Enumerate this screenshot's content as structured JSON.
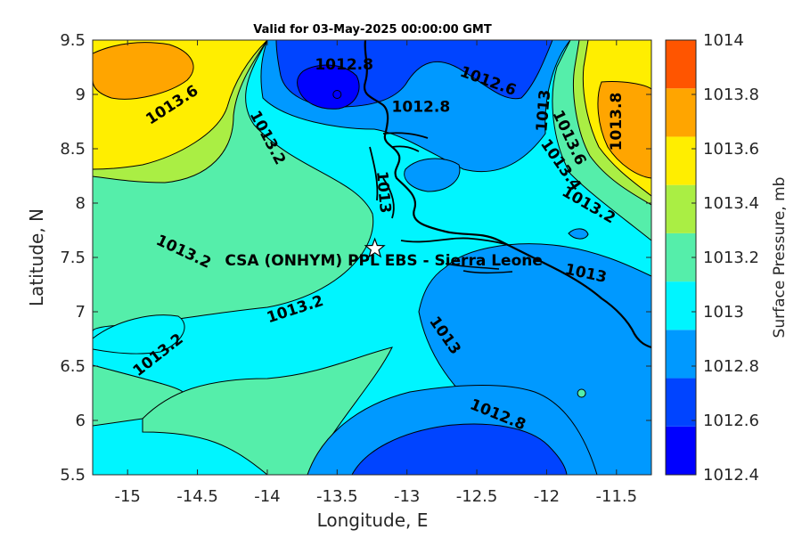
{
  "chart_data": {
    "type": "contour-map",
    "title": "Valid for 03-May-2025 00:00:00 GMT",
    "xlabel": "Longitude, E",
    "ylabel": "Latitude, N",
    "xlim": [
      -15.25,
      -11.25
    ],
    "ylim": [
      5.5,
      9.5
    ],
    "x_ticks": [
      "-15",
      "-14.5",
      "-14",
      "-13.5",
      "-13",
      "-12.5",
      "-12",
      "-11.5"
    ],
    "x_tick_values": [
      -15,
      -14.5,
      -14,
      -13.5,
      -13,
      -12.5,
      -12,
      -11.5
    ],
    "y_ticks": [
      "5.5",
      "6",
      "6.5",
      "7",
      "7.5",
      "8",
      "8.5",
      "9",
      "9.5"
    ],
    "y_tick_values": [
      5.5,
      6,
      6.5,
      7,
      7.5,
      8,
      8.5,
      9,
      9.5
    ],
    "colorbar": {
      "label": "Surface Pressure, mb",
      "ticks": [
        "1012.4",
        "1012.6",
        "1012.8",
        "1013",
        "1013.2",
        "1013.4",
        "1013.6",
        "1013.8",
        "1014"
      ],
      "levels": [
        1012.4,
        1012.5,
        1012.6,
        1012.7,
        1012.8,
        1012.9,
        1013.0,
        1013.1,
        1013.2,
        1013.3,
        1013.4,
        1013.5,
        1013.6,
        1013.7,
        1013.8,
        1013.9,
        1014.0
      ],
      "colors": [
        "#0000ff",
        "#0044ff",
        "#0099ff",
        "#00f5ff",
        "#55eeaa",
        "#aaee44",
        "#ffee00",
        "#ffa500",
        "#ff5500"
      ]
    },
    "contour_labels": [
      {
        "text": "1012.8",
        "lon": -13.45,
        "lat": 9.27,
        "angle": 0
      },
      {
        "text": "1012.6",
        "lon": -12.42,
        "lat": 9.12,
        "angle": 20
      },
      {
        "text": "1012.8",
        "lon": -12.9,
        "lat": 8.88,
        "angle": 0
      },
      {
        "text": "1013.6",
        "lon": -14.68,
        "lat": 8.9,
        "angle": -33
      },
      {
        "text": "1013.2",
        "lon": -14.0,
        "lat": 8.6,
        "angle": 62
      },
      {
        "text": "1013",
        "lon": -13.17,
        "lat": 8.1,
        "angle": 85
      },
      {
        "text": "1013",
        "lon": -12.02,
        "lat": 8.85,
        "angle": -85
      },
      {
        "text": "1013.8",
        "lon": -11.5,
        "lat": 8.75,
        "angle": -90
      },
      {
        "text": "1013.6",
        "lon": -11.84,
        "lat": 8.6,
        "angle": 65
      },
      {
        "text": "1013.4",
        "lon": -11.9,
        "lat": 8.35,
        "angle": 55
      },
      {
        "text": "1013.2",
        "lon": -11.7,
        "lat": 7.98,
        "angle": 30
      },
      {
        "text": "1013",
        "lon": -11.72,
        "lat": 7.35,
        "angle": 12
      },
      {
        "text": "1013",
        "lon": -12.73,
        "lat": 6.78,
        "angle": 55
      },
      {
        "text": "1013.2",
        "lon": -14.6,
        "lat": 7.55,
        "angle": 25
      },
      {
        "text": "1013.2",
        "lon": -13.8,
        "lat": 7.02,
        "angle": -18
      },
      {
        "text": "1013.2",
        "lon": -14.78,
        "lat": 6.6,
        "angle": -38
      },
      {
        "text": "1012.8",
        "lon": -12.35,
        "lat": 6.05,
        "angle": 22
      }
    ],
    "site": {
      "label": "CSA (ONHYM) PPL EBS  - Sierra Leone",
      "lon": -13.23,
      "lat": 7.58
    },
    "low_center": {
      "lon": -13.5,
      "lat": 9.0
    },
    "dot_marker": {
      "lon": -11.75,
      "lat": 6.25
    }
  }
}
